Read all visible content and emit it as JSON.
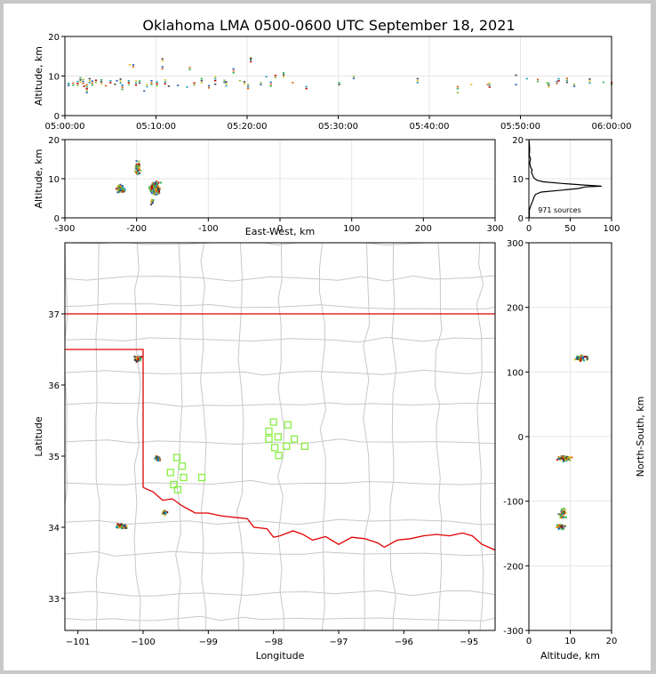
{
  "title": "Oklahoma LMA 0500-0600 UTC September 18, 2021",
  "colors": {
    "frame": "#c8c8c8",
    "grid": "#e6e6e6",
    "county_lines": "#c8c8c8",
    "state_lines": "#e00000",
    "station": "#88ee44",
    "histogram": "#000000",
    "source_colors": [
      "#1f5fb0",
      "#18a0b0",
      "#2cae5a",
      "#88c030",
      "#e0c020",
      "#e06010",
      "#c00000",
      "#404040"
    ]
  },
  "chart_data": [
    {
      "id": "time-height",
      "type": "scatter",
      "xlabel": "",
      "ylabel": "Altitude, km",
      "ylim": [
        0,
        20
      ],
      "y_ticks": [
        0,
        10,
        20
      ],
      "x_ticks": [
        "05:00:00",
        "05:10:00",
        "05:20:00",
        "05:30:00",
        "05:40:00",
        "05:50:00",
        "06:00:00"
      ],
      "xlim_minutes": [
        0,
        60
      ],
      "grid": true,
      "points": [
        [
          0.3,
          7.8
        ],
        [
          0.3,
          8.3
        ],
        [
          0.8,
          7.9
        ],
        [
          1.3,
          7.8
        ],
        [
          1.6,
          8.7
        ],
        [
          1.9,
          8.3
        ],
        [
          2.0,
          7.6
        ],
        [
          2.3,
          7.0
        ],
        [
          2.3,
          6.0
        ],
        [
          2.6,
          8.5
        ],
        [
          2.9,
          7.9
        ],
        [
          3.3,
          8.6
        ],
        [
          3.9,
          8.2
        ],
        [
          4.4,
          7.7
        ],
        [
          4.9,
          8.5
        ],
        [
          5.4,
          8.1
        ],
        [
          5.6,
          9.0
        ],
        [
          6.0,
          8.4
        ],
        [
          6.2,
          6.8
        ],
        [
          6.9,
          8.0
        ],
        [
          7.0,
          13.0
        ],
        [
          7.4,
          12.5
        ],
        [
          7.7,
          7.9
        ],
        [
          8.1,
          8.4
        ],
        [
          8.6,
          6.4
        ],
        [
          8.9,
          7.5
        ],
        [
          9.4,
          8.0
        ],
        [
          10.0,
          7.7
        ],
        [
          10.6,
          14.0
        ],
        [
          10.6,
          12.0
        ],
        [
          10.9,
          8.2
        ],
        [
          11.3,
          7.6
        ],
        [
          12.3,
          7.8
        ],
        [
          13.3,
          7.4
        ],
        [
          13.6,
          11.8
        ],
        [
          14.1,
          7.9
        ],
        [
          14.9,
          8.5
        ],
        [
          15.7,
          7.2
        ],
        [
          16.4,
          9.0
        ],
        [
          16.4,
          8.1
        ],
        [
          17.4,
          8.6
        ],
        [
          17.6,
          7.7
        ],
        [
          18.4,
          11.0
        ],
        [
          19.1,
          9.0
        ],
        [
          19.6,
          8.2
        ],
        [
          20.0,
          7.0
        ],
        [
          20.3,
          13.8
        ],
        [
          20.3,
          14.6
        ],
        [
          21.4,
          8.0
        ],
        [
          22.0,
          10.0
        ],
        [
          22.5,
          7.6
        ],
        [
          23.0,
          9.8
        ],
        [
          23.9,
          10.0
        ],
        [
          24.9,
          8.5
        ],
        [
          26.4,
          7.0
        ],
        [
          30.0,
          8.0
        ],
        [
          31.6,
          9.6
        ],
        [
          38.6,
          8.5
        ],
        [
          43.0,
          7.0
        ],
        [
          43.0,
          6.0
        ],
        [
          44.5,
          8.0
        ],
        [
          46.3,
          8.0
        ],
        [
          46.5,
          7.4
        ],
        [
          49.4,
          10.4
        ],
        [
          49.4,
          8.0
        ],
        [
          50.6,
          9.5
        ],
        [
          51.8,
          8.8
        ],
        [
          52.8,
          8.4
        ],
        [
          53.0,
          7.4
        ],
        [
          53.9,
          8.3
        ],
        [
          54.1,
          9.0
        ],
        [
          55.0,
          8.6
        ],
        [
          55.8,
          7.6
        ],
        [
          57.5,
          8.4
        ],
        [
          59.0,
          8.6
        ],
        [
          59.9,
          8.0
        ]
      ]
    },
    {
      "id": "ew-height",
      "type": "scatter",
      "xlabel": "East-West, km",
      "ylabel": "Altitude, km",
      "xlim": [
        -300,
        300
      ],
      "ylim": [
        0,
        20
      ],
      "x_ticks": [
        -300,
        -200,
        -100,
        0,
        100,
        200,
        300
      ],
      "y_ticks": [
        0,
        10,
        20
      ],
      "grid": true,
      "clusters": [
        {
          "x": -223,
          "y": 7.6,
          "dx": 8,
          "dy": 1.4,
          "n": 60
        },
        {
          "x": -200,
          "y": 13,
          "dx": 5,
          "dy": 2.6,
          "n": 45
        },
        {
          "x": -175,
          "y": 7.8,
          "dx": 9,
          "dy": 2.2,
          "n": 140
        },
        {
          "x": -180,
          "y": 4.5,
          "dx": 4,
          "dy": 1.2,
          "n": 10
        }
      ]
    },
    {
      "id": "height-histogram",
      "type": "line",
      "xlim": [
        0,
        100
      ],
      "ylim": [
        0,
        20
      ],
      "x_ticks": [
        0,
        50,
        100
      ],
      "y_ticks": [
        0,
        10,
        20
      ],
      "annotation": "971 sources",
      "profile": [
        [
          0.5,
          0
        ],
        [
          0.5,
          2
        ],
        [
          2,
          3
        ],
        [
          5,
          4.5
        ],
        [
          6,
          5.2
        ],
        [
          8,
          6
        ],
        [
          15,
          6.6
        ],
        [
          40,
          7.1
        ],
        [
          60,
          7.5
        ],
        [
          68,
          7.9
        ],
        [
          88,
          8.1
        ],
        [
          65,
          8.4
        ],
        [
          40,
          8.8
        ],
        [
          18,
          9.2
        ],
        [
          10,
          9.6
        ],
        [
          6,
          10.2
        ],
        [
          4,
          11.2
        ],
        [
          3,
          11.8
        ],
        [
          4,
          12.2
        ],
        [
          2,
          13
        ],
        [
          1,
          14
        ],
        [
          2,
          15
        ],
        [
          0.5,
          16
        ],
        [
          1,
          17.5
        ],
        [
          0.5,
          19
        ],
        [
          0,
          20
        ]
      ]
    },
    {
      "id": "plan-view",
      "type": "scatter",
      "xlabel": "Longitude",
      "ylabel": "Latitude",
      "xlim": [
        -101.2,
        -94.6
      ],
      "ylim": [
        32.55,
        38.0
      ],
      "x_ticks": [
        -101,
        -100,
        -99,
        -98,
        -97,
        -96,
        -95
      ],
      "y_ticks": [
        33,
        34,
        35,
        36,
        37
      ],
      "clusters": [
        {
          "x": -100.1,
          "y": 36.38,
          "dx": 0.08,
          "dy": 0.06,
          "n": 40
        },
        {
          "x": -99.8,
          "y": 34.98,
          "dx": 0.05,
          "dy": 0.05,
          "n": 40
        },
        {
          "x": -99.68,
          "y": 34.22,
          "dx": 0.05,
          "dy": 0.05,
          "n": 30
        },
        {
          "x": -100.35,
          "y": 34.03,
          "dx": 0.12,
          "dy": 0.04,
          "n": 50
        }
      ],
      "stations": [
        [
          -98.0,
          35.48
        ],
        [
          -97.78,
          35.44
        ],
        [
          -98.07,
          35.35
        ],
        [
          -97.93,
          35.27
        ],
        [
          -98.07,
          35.24
        ],
        [
          -97.68,
          35.24
        ],
        [
          -97.8,
          35.14
        ],
        [
          -97.52,
          35.14
        ],
        [
          -97.98,
          35.12
        ],
        [
          -97.92,
          35.01
        ],
        [
          -99.48,
          34.98
        ],
        [
          -99.4,
          34.86
        ],
        [
          -99.58,
          34.77
        ],
        [
          -99.38,
          34.7
        ],
        [
          -99.1,
          34.7
        ],
        [
          -99.53,
          34.6
        ],
        [
          -99.47,
          34.53
        ]
      ]
    },
    {
      "id": "height-ns",
      "type": "scatter",
      "xlabel": "Altitude, km",
      "ylabel": "North-South, km",
      "xlim": [
        0,
        20
      ],
      "ylim": [
        -300,
        300
      ],
      "x_ticks": [
        0,
        10,
        20
      ],
      "y_ticks": [
        -300,
        -200,
        -100,
        0,
        100,
        200,
        300
      ],
      "grid": true,
      "clusters": [
        {
          "x": 12.5,
          "y": 122,
          "dx": 2.2,
          "dy": 6,
          "n": 40
        },
        {
          "x": 8.5,
          "y": -32,
          "dx": 2.5,
          "dy": 6,
          "n": 60
        },
        {
          "x": 8.0,
          "y": -118,
          "dx": 1.2,
          "dy": 10,
          "n": 40
        },
        {
          "x": 7.5,
          "y": -138,
          "dx": 1.4,
          "dy": 6,
          "n": 40
        }
      ]
    }
  ]
}
